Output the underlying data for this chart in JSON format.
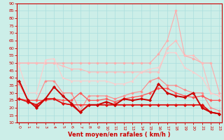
{
  "xlabel": "Vent moyen/en rafales ( km/h )",
  "background_color": "#cceee8",
  "grid_color": "#aadddd",
  "x": [
    0,
    1,
    2,
    3,
    4,
    5,
    6,
    7,
    8,
    9,
    10,
    11,
    12,
    13,
    14,
    15,
    16,
    17,
    18,
    19,
    20,
    21,
    22,
    23
  ],
  "series": [
    {
      "color": "#ffaaaa",
      "alpha": 1.0,
      "linewidth": 0.8,
      "marker": "D",
      "markersize": 1.8,
      "data": [
        50,
        50,
        50,
        50,
        50,
        50,
        50,
        50,
        50,
        50,
        50,
        50,
        50,
        50,
        50,
        50,
        56,
        65,
        85,
        55,
        53,
        50,
        50,
        30
      ]
    },
    {
      "color": "#ffbbbb",
      "alpha": 1.0,
      "linewidth": 0.8,
      "marker": "D",
      "markersize": 1.8,
      "data": [
        50,
        50,
        50,
        50,
        50,
        48,
        46,
        46,
        44,
        44,
        44,
        44,
        44,
        44,
        44,
        44,
        44,
        60,
        65,
        55,
        55,
        50,
        30,
        28
      ]
    },
    {
      "color": "#ffcccc",
      "alpha": 1.0,
      "linewidth": 0.8,
      "marker": "^",
      "markersize": 2.0,
      "data": [
        48,
        30,
        30,
        52,
        53,
        40,
        38,
        38,
        38,
        38,
        38,
        36,
        36,
        38,
        44,
        46,
        47,
        57,
        57,
        47,
        44,
        40,
        30,
        28
      ]
    },
    {
      "color": "#ff8888",
      "alpha": 1.0,
      "linewidth": 0.8,
      "marker": "D",
      "markersize": 1.8,
      "data": [
        36,
        25,
        25,
        38,
        38,
        30,
        30,
        18,
        28,
        28,
        28,
        26,
        28,
        30,
        31,
        38,
        40,
        35,
        35,
        32,
        30,
        30,
        20,
        18
      ]
    },
    {
      "color": "#ff5555",
      "alpha": 1.0,
      "linewidth": 0.9,
      "marker": "D",
      "markersize": 2.0,
      "data": [
        26,
        25,
        25,
        25,
        26,
        25,
        25,
        30,
        25,
        25,
        26,
        24,
        26,
        27,
        28,
        30,
        33,
        33,
        30,
        28,
        27,
        28,
        25,
        25
      ]
    },
    {
      "color": "#ff3333",
      "alpha": 1.0,
      "linewidth": 1.0,
      "marker": "D",
      "markersize": 2.0,
      "data": [
        26,
        24,
        22,
        26,
        26,
        23,
        22,
        22,
        22,
        22,
        22,
        22,
        22,
        22,
        22,
        22,
        22,
        22,
        22,
        22,
        22,
        22,
        17,
        16
      ]
    },
    {
      "color": "#dd1111",
      "alpha": 1.0,
      "linewidth": 1.2,
      "marker": "D",
      "markersize": 2.2,
      "data": [
        26,
        24,
        22,
        26,
        26,
        23,
        22,
        17,
        22,
        22,
        22,
        22,
        22,
        22,
        22,
        22,
        22,
        22,
        22,
        22,
        22,
        22,
        17,
        16
      ]
    },
    {
      "color": "#cc0000",
      "alpha": 1.0,
      "linewidth": 1.4,
      "marker": "D",
      "markersize": 2.2,
      "data": [
        38,
        25,
        20,
        26,
        34,
        28,
        23,
        17,
        22,
        22,
        24,
        22,
        26,
        25,
        26,
        25,
        36,
        30,
        28,
        27,
        30,
        20,
        17,
        16
      ]
    }
  ],
  "ylim": [
    10,
    90
  ],
  "yticks": [
    10,
    15,
    20,
    25,
    30,
    35,
    40,
    45,
    50,
    55,
    60,
    65,
    70,
    75,
    80,
    85,
    90
  ],
  "xticks": [
    0,
    1,
    2,
    3,
    4,
    5,
    6,
    7,
    8,
    9,
    10,
    11,
    12,
    13,
    14,
    15,
    16,
    17,
    18,
    19,
    20,
    21,
    22,
    23
  ],
  "tick_color": "#cc0000",
  "xlabel_color": "#cc0000",
  "grid_linewidth": 0.5
}
